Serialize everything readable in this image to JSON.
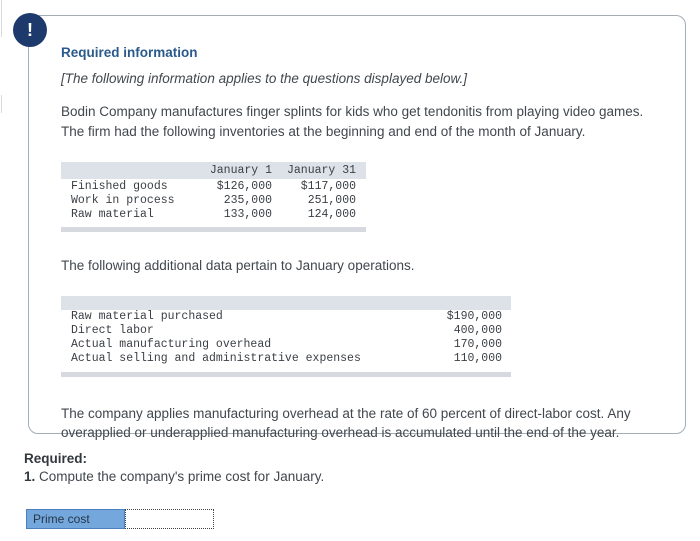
{
  "alert": {
    "glyph": "!"
  },
  "info_box": {
    "heading": "Required information",
    "notice": "[The following information applies to the questions displayed below.]",
    "intro": "Bodin Company manufactures finger splints for kids who get tendonitis from playing video games. The firm had the following inventories at the beginning and end of the month of January.",
    "inventory_table": {
      "columns": {
        "col1": "January 1",
        "col2": "January 31"
      },
      "rows": [
        {
          "label": "Finished goods",
          "jan1": "$126,000",
          "jan31": "$117,000"
        },
        {
          "label": "Work in process",
          "jan1": "235,000",
          "jan31": "251,000"
        },
        {
          "label": "Raw material",
          "jan1": "133,000",
          "jan31": "124,000"
        }
      ]
    },
    "additional_text": "The following additional data pertain to January operations.",
    "operations_table": {
      "rows": [
        {
          "label": "Raw material purchased",
          "value": "$190,000"
        },
        {
          "label": "Direct labor",
          "value": "400,000"
        },
        {
          "label": "Actual manufacturing overhead",
          "value": "170,000"
        },
        {
          "label": "Actual selling and administrative expenses",
          "value": "110,000"
        }
      ]
    },
    "closing": "The company applies manufacturing overhead at the rate of 60 percent of direct-labor cost. Any overapplied or underapplied manufacturing overhead is accumulated until the end of the year."
  },
  "required": {
    "heading": "Required:",
    "item_number": "1.",
    "item_text": " Compute the company's prime cost for January."
  },
  "answer": {
    "label": "Prime cost",
    "value": "",
    "placeholder": ""
  },
  "colors": {
    "heading_blue": "#2a5a8c",
    "alert_circle": "#1e3a6d",
    "table_stripe": "#dde1e8",
    "answer_cell_fill": "#74a7db",
    "answer_cell_border": "#4a7fc0",
    "box_border": "#a3adb5"
  }
}
